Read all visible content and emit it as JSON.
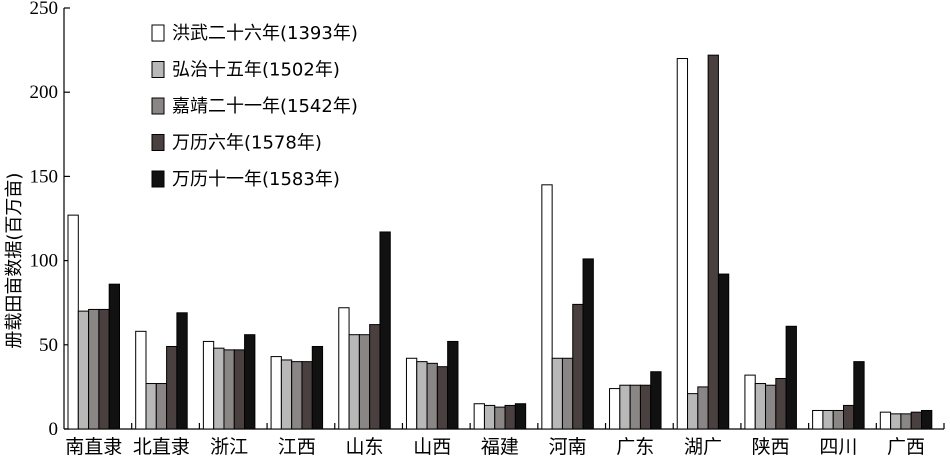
{
  "chart_data": {
    "type": "bar",
    "title": "",
    "xlabel": "",
    "ylabel": "册载田亩数据(百万亩)",
    "ylim": [
      0,
      250
    ],
    "yticks": [
      0,
      50,
      100,
      150,
      200,
      250
    ],
    "grid": false,
    "legend_position": "top-left",
    "categories": [
      "南直隶",
      "北直隶",
      "浙江",
      "江西",
      "山东",
      "山西",
      "福建",
      "河南",
      "广东",
      "湖广",
      "陕西",
      "四川",
      "广西"
    ],
    "series": [
      {
        "name": "洪武二十六年(1393年)",
        "color": "#ffffff",
        "values": [
          127,
          58,
          52,
          43,
          72,
          42,
          15,
          145,
          24,
          220,
          32,
          11,
          10
        ]
      },
      {
        "name": "弘治十五年(1502年)",
        "color": "#b8b8b8",
        "values": [
          70,
          27,
          48,
          41,
          56,
          40,
          14,
          42,
          26,
          21,
          27,
          11,
          9
        ]
      },
      {
        "name": "嘉靖二十一年(1542年)",
        "color": "#8a8686",
        "values": [
          71,
          27,
          47,
          40,
          56,
          39,
          13,
          42,
          26,
          25,
          26,
          11,
          9
        ]
      },
      {
        "name": "万历六年(1578年)",
        "color": "#4a4040",
        "values": [
          71,
          49,
          47,
          40,
          62,
          37,
          14,
          74,
          26,
          222,
          30,
          14,
          10
        ]
      },
      {
        "name": "万历十一年(1583年)",
        "color": "#111111",
        "values": [
          86,
          69,
          56,
          49,
          117,
          52,
          15,
          101,
          34,
          92,
          61,
          40,
          11
        ]
      }
    ]
  }
}
